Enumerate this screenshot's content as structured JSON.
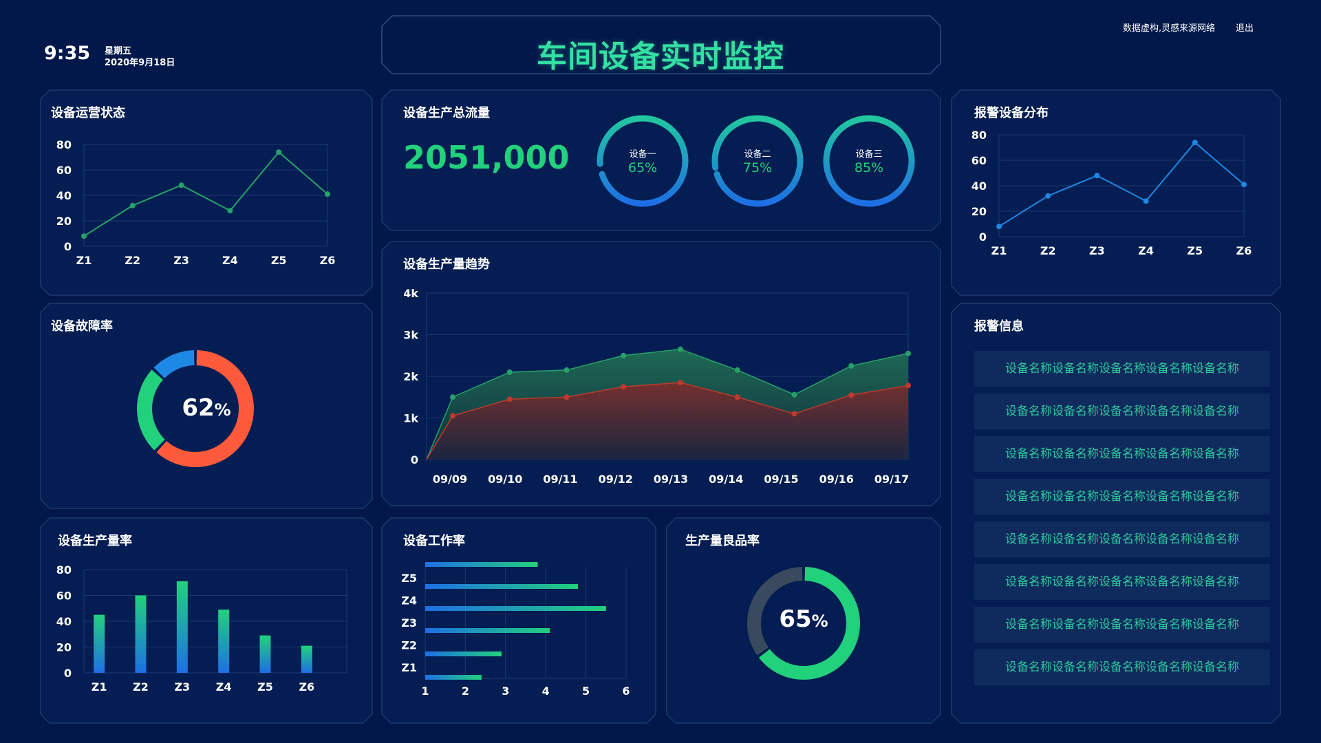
{
  "header": {
    "time": "9:35",
    "weekday": "星期五",
    "date": "2020年9月18日",
    "title": "车间设备实时监控",
    "note": "数据虚构,灵感来源网络",
    "logout": "退出"
  },
  "colors": {
    "background": "#03184a",
    "panel_border": "#1c3a6e",
    "accent_green": "#22d17c",
    "accent_blue": "#1e88e5",
    "accent_orange": "#ff5a3c",
    "title_green": "#34e0a1"
  },
  "panels": {
    "op_status": "设备运营状态",
    "fault_rate": "设备故障率",
    "prod_rate": "设备生产量率",
    "total_flow": "设备生产总流量",
    "trend": "设备生产量趋势",
    "work_rate": "设备工作率",
    "yield_rate": "生产量良品率",
    "alarm_dist": "报警设备分布",
    "alarm_info": "报警信息"
  },
  "total_flow": {
    "value": "2051,000",
    "gauges": [
      {
        "label": "设备一",
        "value": "65%",
        "percent": 65
      },
      {
        "label": "设备二",
        "value": "75%",
        "percent": 75
      },
      {
        "label": "设备三",
        "value": "85%",
        "percent": 85
      }
    ]
  },
  "fault": {
    "value": "62",
    "unit": "%"
  },
  "yield": {
    "value": "65",
    "unit": "%"
  },
  "alarms": [
    "设备名称设备名称设备名称设备名称设备名称",
    "设备名称设备名称设备名称设备名称设备名称",
    "设备名称设备名称设备名称设备名称设备名称",
    "设备名称设备名称设备名称设备名称设备名称",
    "设备名称设备名称设备名称设备名称设备名称",
    "设备名称设备名称设备名称设备名称设备名称",
    "设备名称设备名称设备名称设备名称设备名称",
    "设备名称设备名称设备名称设备名称设备名称"
  ],
  "chart_data": [
    {
      "type": "line",
      "panel": "设备运营状态",
      "categories": [
        "Z1",
        "Z2",
        "Z3",
        "Z4",
        "Z5",
        "Z6"
      ],
      "values": [
        8,
        32,
        48,
        28,
        74,
        41
      ],
      "ylim": [
        0,
        80
      ],
      "yticks": [
        "0",
        "20",
        "40",
        "60",
        "80"
      ],
      "color": "#26a269"
    },
    {
      "type": "pie",
      "panel": "设备故障率",
      "values": [
        62,
        25,
        13
      ],
      "colors": [
        "#ff5a3c",
        "#22d17c",
        "#1e88e5"
      ]
    },
    {
      "type": "bar",
      "panel": "设备生产量率",
      "categories": [
        "Z1",
        "Z2",
        "Z3",
        "Z4",
        "Z5",
        "Z6"
      ],
      "values": [
        45,
        60,
        71,
        49,
        29,
        21
      ],
      "ylim": [
        0,
        80
      ],
      "yticks": [
        "0",
        "20",
        "40",
        "60",
        "80"
      ]
    },
    {
      "type": "area",
      "panel": "设备生产量趋势",
      "categories": [
        "09/09",
        "09/10",
        "09/11",
        "09/12",
        "09/13",
        "09/14",
        "09/15",
        "09/16",
        "09/17"
      ],
      "yticks": [
        "0",
        "1k",
        "2k",
        "3k",
        "4k"
      ],
      "ylim": [
        0,
        4000
      ],
      "series": [
        {
          "values": [
            1500,
            2100,
            2150,
            2500,
            2650,
            2150,
            1560,
            2250,
            2550
          ],
          "color": "#26a269"
        },
        {
          "values": [
            1050,
            1450,
            1500,
            1750,
            1850,
            1500,
            1100,
            1550,
            1780
          ],
          "color": "#c0392b"
        }
      ]
    },
    {
      "type": "bar",
      "orientation": "horizontal",
      "panel": "设备工作率",
      "categories": [
        "Z1",
        "Z2",
        "Z3",
        "Z4",
        "Z5"
      ],
      "values": [
        2.4,
        2.9,
        4.1,
        5.5,
        4.8
      ],
      "extra": [
        3.8
      ],
      "xlim": [
        1,
        6
      ],
      "xticks": [
        "1",
        "2",
        "3",
        "4",
        "5",
        "6"
      ]
    },
    {
      "type": "pie",
      "panel": "生产量良品率",
      "values": [
        65,
        35
      ],
      "colors": [
        "#22d17c",
        "#3a4a5e"
      ]
    },
    {
      "type": "line",
      "panel": "报警设备分布",
      "categories": [
        "Z1",
        "Z2",
        "Z3",
        "Z4",
        "Z5",
        "Z6"
      ],
      "values": [
        8,
        32,
        48,
        28,
        74,
        41
      ],
      "ylim": [
        0,
        80
      ],
      "yticks": [
        "0",
        "20",
        "40",
        "60",
        "80"
      ],
      "color": "#1e88e5"
    }
  ]
}
